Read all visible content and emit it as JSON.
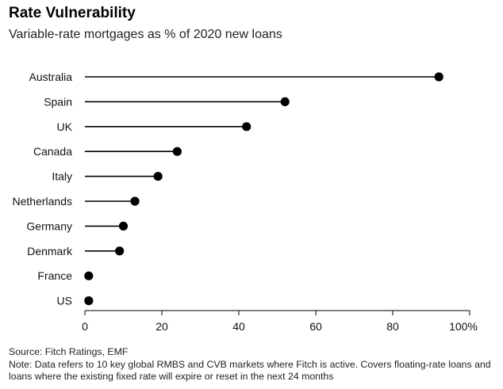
{
  "title": "Rate Vulnerability",
  "subtitle": "Variable-rate mortgages as % of 2020 new loans",
  "chart_data": {
    "type": "lollipop",
    "orientation": "horizontal",
    "categories": [
      "Australia",
      "Spain",
      "UK",
      "Canada",
      "Italy",
      "Netherlands",
      "Germany",
      "Denmark",
      "France",
      "US"
    ],
    "values": [
      92,
      52,
      42,
      24,
      19,
      13,
      10,
      9,
      1,
      1
    ],
    "xlim": [
      0,
      100
    ],
    "xticks": [
      "0",
      "20",
      "40",
      "60",
      "80",
      "100%"
    ],
    "xtick_values": [
      0,
      20,
      40,
      60,
      80,
      100
    ],
    "grid": false,
    "color": "#000000"
  },
  "footer": {
    "source": "Source: Fitch Ratings, EMF",
    "note": "Note: Data refers to 10 key global RMBS and CVB markets where Fitch is active. Covers floating-rate loans and loans where the existing fixed rate will expire or reset in the next 24 months"
  }
}
